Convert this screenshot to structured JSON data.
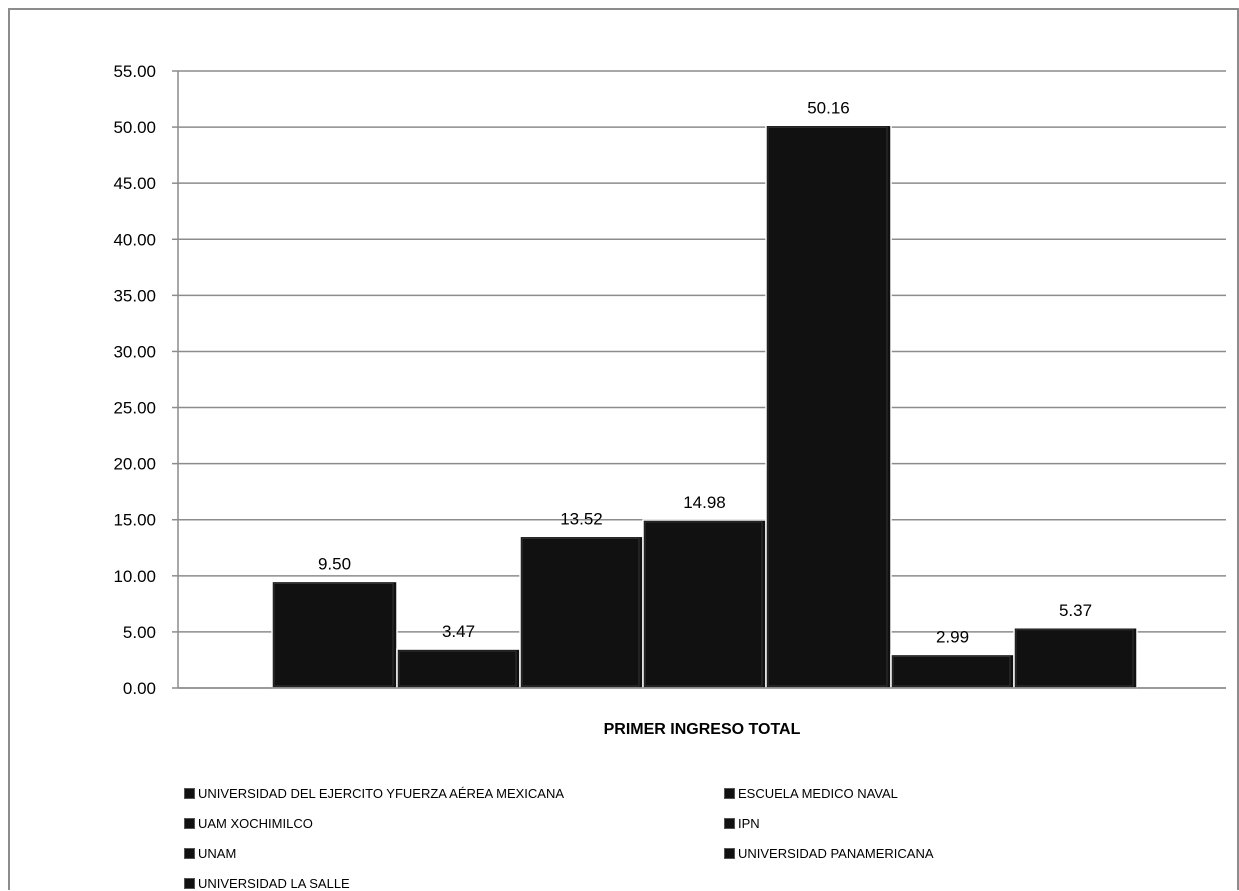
{
  "chart_data": {
    "type": "bar",
    "xlabel": "PRIMER INGRESO TOTAL",
    "ylabel": "",
    "ylim": [
      0,
      55
    ],
    "yticks": [
      "0.00",
      "5.00",
      "10.00",
      "15.00",
      "20.00",
      "25.00",
      "30.00",
      "35.00",
      "40.00",
      "45.00",
      "50.00",
      "55.00"
    ],
    "grid": true,
    "legend_position": "bottom",
    "series": [
      {
        "name": "UNIVERSIDAD DEL EJERCITO YFUERZA AÉREA MEXICANA",
        "value": 9.5,
        "label": "9.50"
      },
      {
        "name": "ESCUELA MEDICO NAVAL",
        "value": 3.47,
        "label": "3.47"
      },
      {
        "name": "UAM XOCHIMILCO",
        "value": 13.52,
        "label": "13.52"
      },
      {
        "name": "IPN",
        "value": 14.98,
        "label": "14.98"
      },
      {
        "name": "UNAM",
        "value": 50.16,
        "label": "50.16"
      },
      {
        "name": "UNIVERSIDAD PANAMERICANA",
        "value": 2.99,
        "label": "2.99"
      },
      {
        "name": "UNIVERSIDAD LA SALLE",
        "value": 5.37,
        "label": "5.37"
      }
    ],
    "bar_color": "#111111",
    "grid_color": "#8c8c8c"
  }
}
